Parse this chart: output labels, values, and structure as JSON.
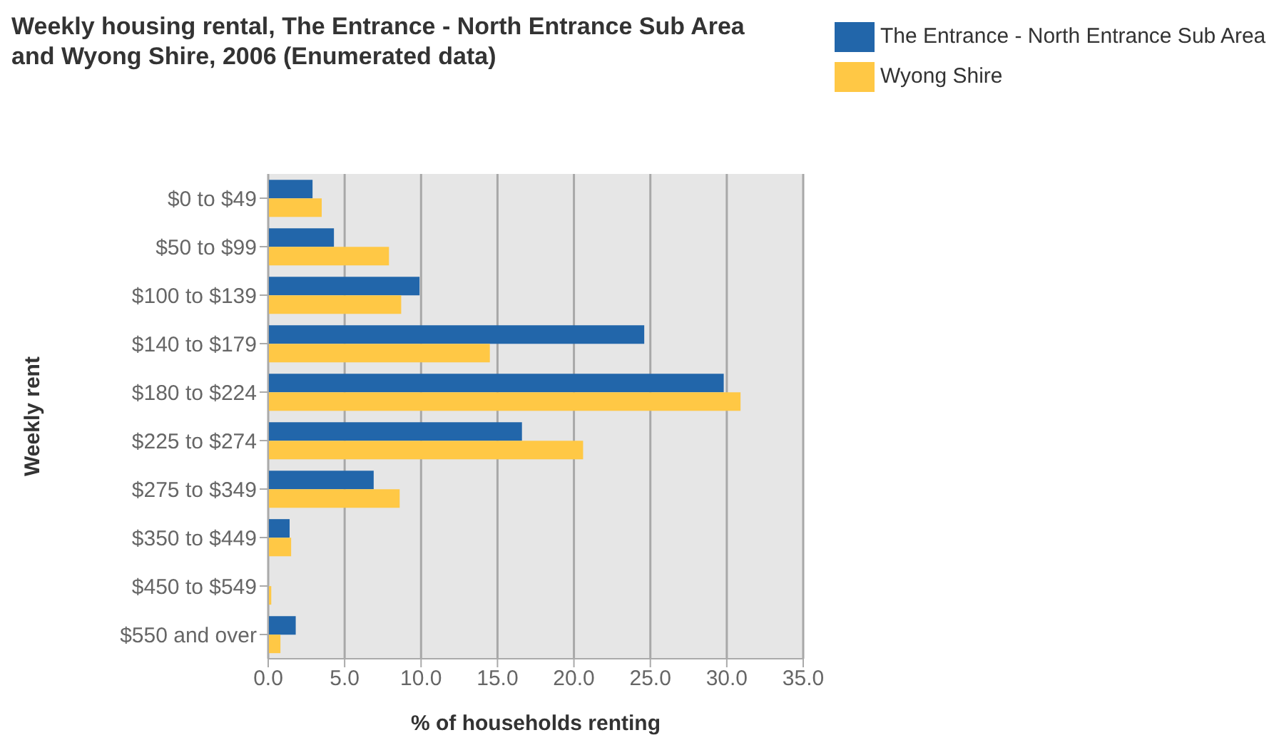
{
  "chart_data": {
    "type": "bar",
    "orientation": "horizontal",
    "title": "Weekly housing rental, The Entrance - North Entrance Sub Area and Wyong Shire, 2006 (Enumerated data)",
    "xlabel": "% of households renting",
    "ylabel": "Weekly rent",
    "categories": [
      "$0 to $49",
      "$50 to $99",
      "$100 to $139",
      "$140 to $179",
      "$180 to $224",
      "$225 to $274",
      "$275 to $349",
      "$350 to $449",
      "$450 to $549",
      "$550 and over"
    ],
    "series": [
      {
        "name": "The Entrance - North Entrance Sub Area",
        "color": "#2266aa",
        "values": [
          2.9,
          4.3,
          9.9,
          24.6,
          29.8,
          16.6,
          6.9,
          1.4,
          0,
          1.8
        ]
      },
      {
        "name": "Wyong Shire",
        "color": "#ffc845",
        "values": [
          3.5,
          7.9,
          8.7,
          14.5,
          30.9,
          20.6,
          8.6,
          1.5,
          0.2,
          0.8
        ]
      }
    ],
    "xlim": [
      0,
      35
    ],
    "xticks": [
      {
        "value": 0,
        "label": "0.0"
      },
      {
        "value": 5,
        "label": "5.0"
      },
      {
        "value": 10,
        "label": "10.0"
      },
      {
        "value": 15,
        "label": "15.0"
      },
      {
        "value": 20,
        "label": "20.0"
      },
      {
        "value": 25,
        "label": "25.0"
      },
      {
        "value": 30,
        "label": "30.0"
      },
      {
        "value": 35,
        "label": "35.0"
      }
    ],
    "grid": "x",
    "legend": "top right"
  }
}
